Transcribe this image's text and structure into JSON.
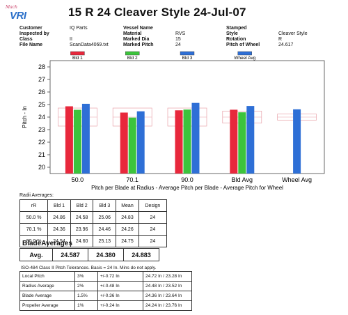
{
  "header": {
    "logo_script": "Mach",
    "logo_text": "VRI",
    "title": "15  R 24  Cleaver Style  24-Jul-07"
  },
  "info": {
    "customer_label": "Customer",
    "customer_value": "IQ Parts",
    "inspected_label": "Inspected by",
    "inspected_value": "",
    "class_label": "Class",
    "class_value": "II",
    "file_label": "File Name",
    "file_value": "ScanData4069.txt",
    "vessel_label": "Vessel Name",
    "vessel_value": "",
    "material_label": "Material",
    "material_value": "RVS",
    "dia_label": "Marked Dia",
    "dia_value": "15",
    "pitch_label": "Marked Pitch",
    "pitch_value": "24",
    "stamped_label": "Stamped",
    "stamped_value": "",
    "style_label": "Style",
    "style_value": "Cleaver Style",
    "rotation_label": "Rotation",
    "rotation_value": "R",
    "wheel_label": "Pitch of Wheel",
    "wheel_value": "24.617"
  },
  "chart_data": {
    "type": "bar",
    "categories": [
      "50.0",
      "70.1",
      "90.0",
      "Bld Avg",
      "Wheel Avg"
    ],
    "series": [
      {
        "name": "Bld 1",
        "color": "#e8283c",
        "values": [
          24.86,
          24.36,
          24.54,
          24.587,
          null
        ]
      },
      {
        "name": "Bld 2",
        "color": "#3cc43c",
        "values": [
          24.58,
          23.96,
          24.6,
          24.38,
          null
        ]
      },
      {
        "name": "Bld 3",
        "color": "#2e6fd6",
        "values": [
          25.06,
          24.46,
          25.13,
          24.883,
          null
        ]
      },
      {
        "name": "Wheel Avg",
        "color": "#2e6fd6",
        "values": [
          null,
          null,
          null,
          null,
          24.617
        ]
      }
    ],
    "design_value": 24,
    "tolerance_boxes": [
      {
        "category": "50.0",
        "low": 23.28,
        "high": 24.72
      },
      {
        "category": "70.1",
        "low": 23.28,
        "high": 24.72
      },
      {
        "category": "90.0",
        "low": 23.28,
        "high": 24.72
      },
      {
        "category": "Bld Avg",
        "low": 23.52,
        "high": 24.48
      },
      {
        "category": "Wheel Avg",
        "low": 23.76,
        "high": 24.24
      }
    ],
    "title": "",
    "xlabel": "Pitch per Blade at Radius - Average Pitch per Blade - Average Pitch for Wheel",
    "ylabel": "Pitch - In",
    "ylim": [
      19.5,
      28.5
    ],
    "yticks": [
      20,
      21,
      22,
      23,
      24,
      25,
      26,
      27,
      28
    ],
    "legend_position": "top",
    "grid": false
  },
  "radii": {
    "title": "Radii Averages:",
    "headers": [
      "rR",
      "Bld 1",
      "Bld 2",
      "Bld 3",
      "Mean",
      "Design"
    ],
    "rows": [
      [
        "50.0 %",
        "24.86",
        "24.58",
        "25.06",
        "24.83",
        "24"
      ],
      [
        "70.1 %",
        "24.36",
        "23.96",
        "24.46",
        "24.26",
        "24"
      ],
      [
        "90.0 %",
        "24.54",
        "24.60",
        "25.13",
        "24.75",
        "24"
      ]
    ]
  },
  "blade_averages": {
    "title": "BladeAverages",
    "label": "Avg.",
    "values": [
      "24.587",
      "24.380",
      "24.883"
    ]
  },
  "iso": {
    "title": "ISO-484 Class II Pitch Tolerances.  Basis = 24 In.  Mins do not apply.",
    "rows": [
      [
        "Local Pitch",
        "3%",
        "+/-0.72 In",
        "24.72 In / 23.28 In"
      ],
      [
        "Radius Average",
        "2%",
        "+/-0.48 In",
        "24.48 In / 23.52 In"
      ],
      [
        "Blade Average",
        "1.5%",
        "+/-0.36 In",
        "24.36 In / 23.64 In"
      ],
      [
        "Propeller Average",
        "1%",
        "+/-0.24 In",
        "24.24 In / 23.76 In"
      ]
    ]
  }
}
